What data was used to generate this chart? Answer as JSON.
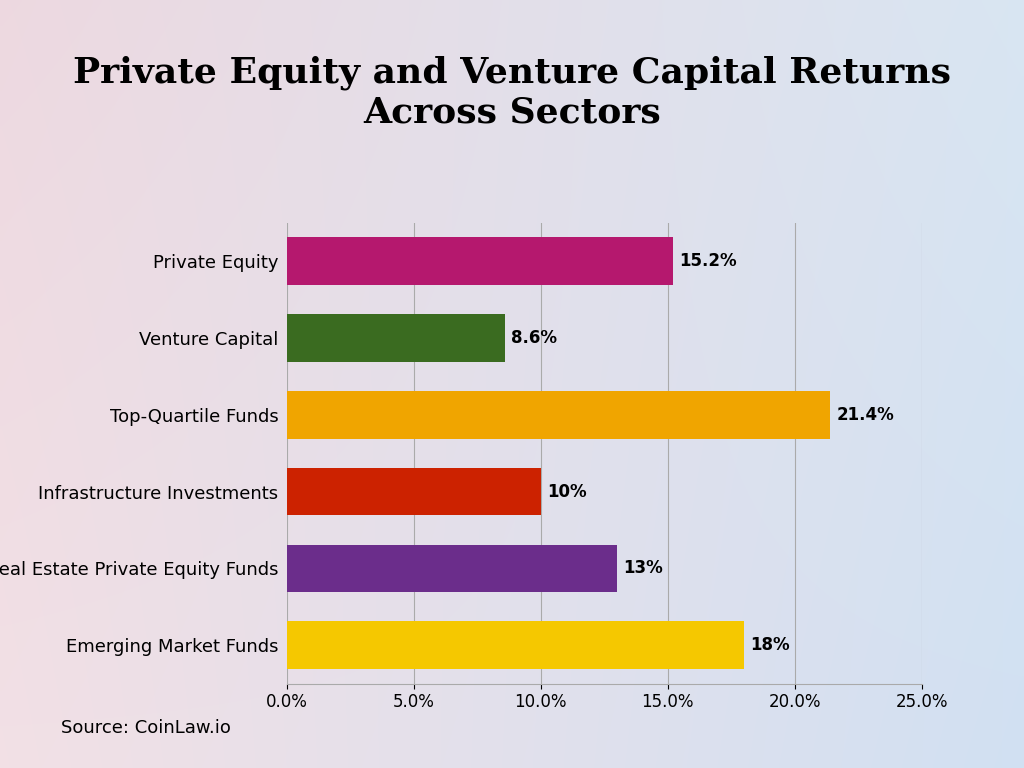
{
  "title": "Private Equity and Venture Capital Returns\nAcross Sectors",
  "categories": [
    "Private Equity",
    "Venture Capital",
    "Top-Quartile Funds",
    "Infrastructure Investments",
    "Real Estate Private Equity Funds",
    "Emerging Market Funds"
  ],
  "values": [
    15.2,
    8.6,
    21.4,
    10.0,
    13.0,
    18.0
  ],
  "bar_colors": [
    "#B5186E",
    "#3A6B20",
    "#F0A500",
    "#CC2200",
    "#6B2D8B",
    "#F5C800"
  ],
  "value_labels": [
    "15.2%",
    "8.6%",
    "21.4%",
    "10%",
    "13%",
    "18%"
  ],
  "xlim": [
    0,
    25.0
  ],
  "xticks": [
    0.0,
    5.0,
    10.0,
    15.0,
    20.0,
    25.0
  ],
  "xtick_labels": [
    "0.0%",
    "5.0%",
    "10.0%",
    "15.0%",
    "20.0%",
    "25.0%"
  ],
  "source_text": "Source: CoinLaw.io",
  "title_fontsize": 26,
  "label_fontsize": 13,
  "value_fontsize": 12,
  "tick_fontsize": 12,
  "source_fontsize": 13,
  "bar_height": 0.62,
  "figsize": [
    10.24,
    7.68
  ],
  "dpi": 100
}
